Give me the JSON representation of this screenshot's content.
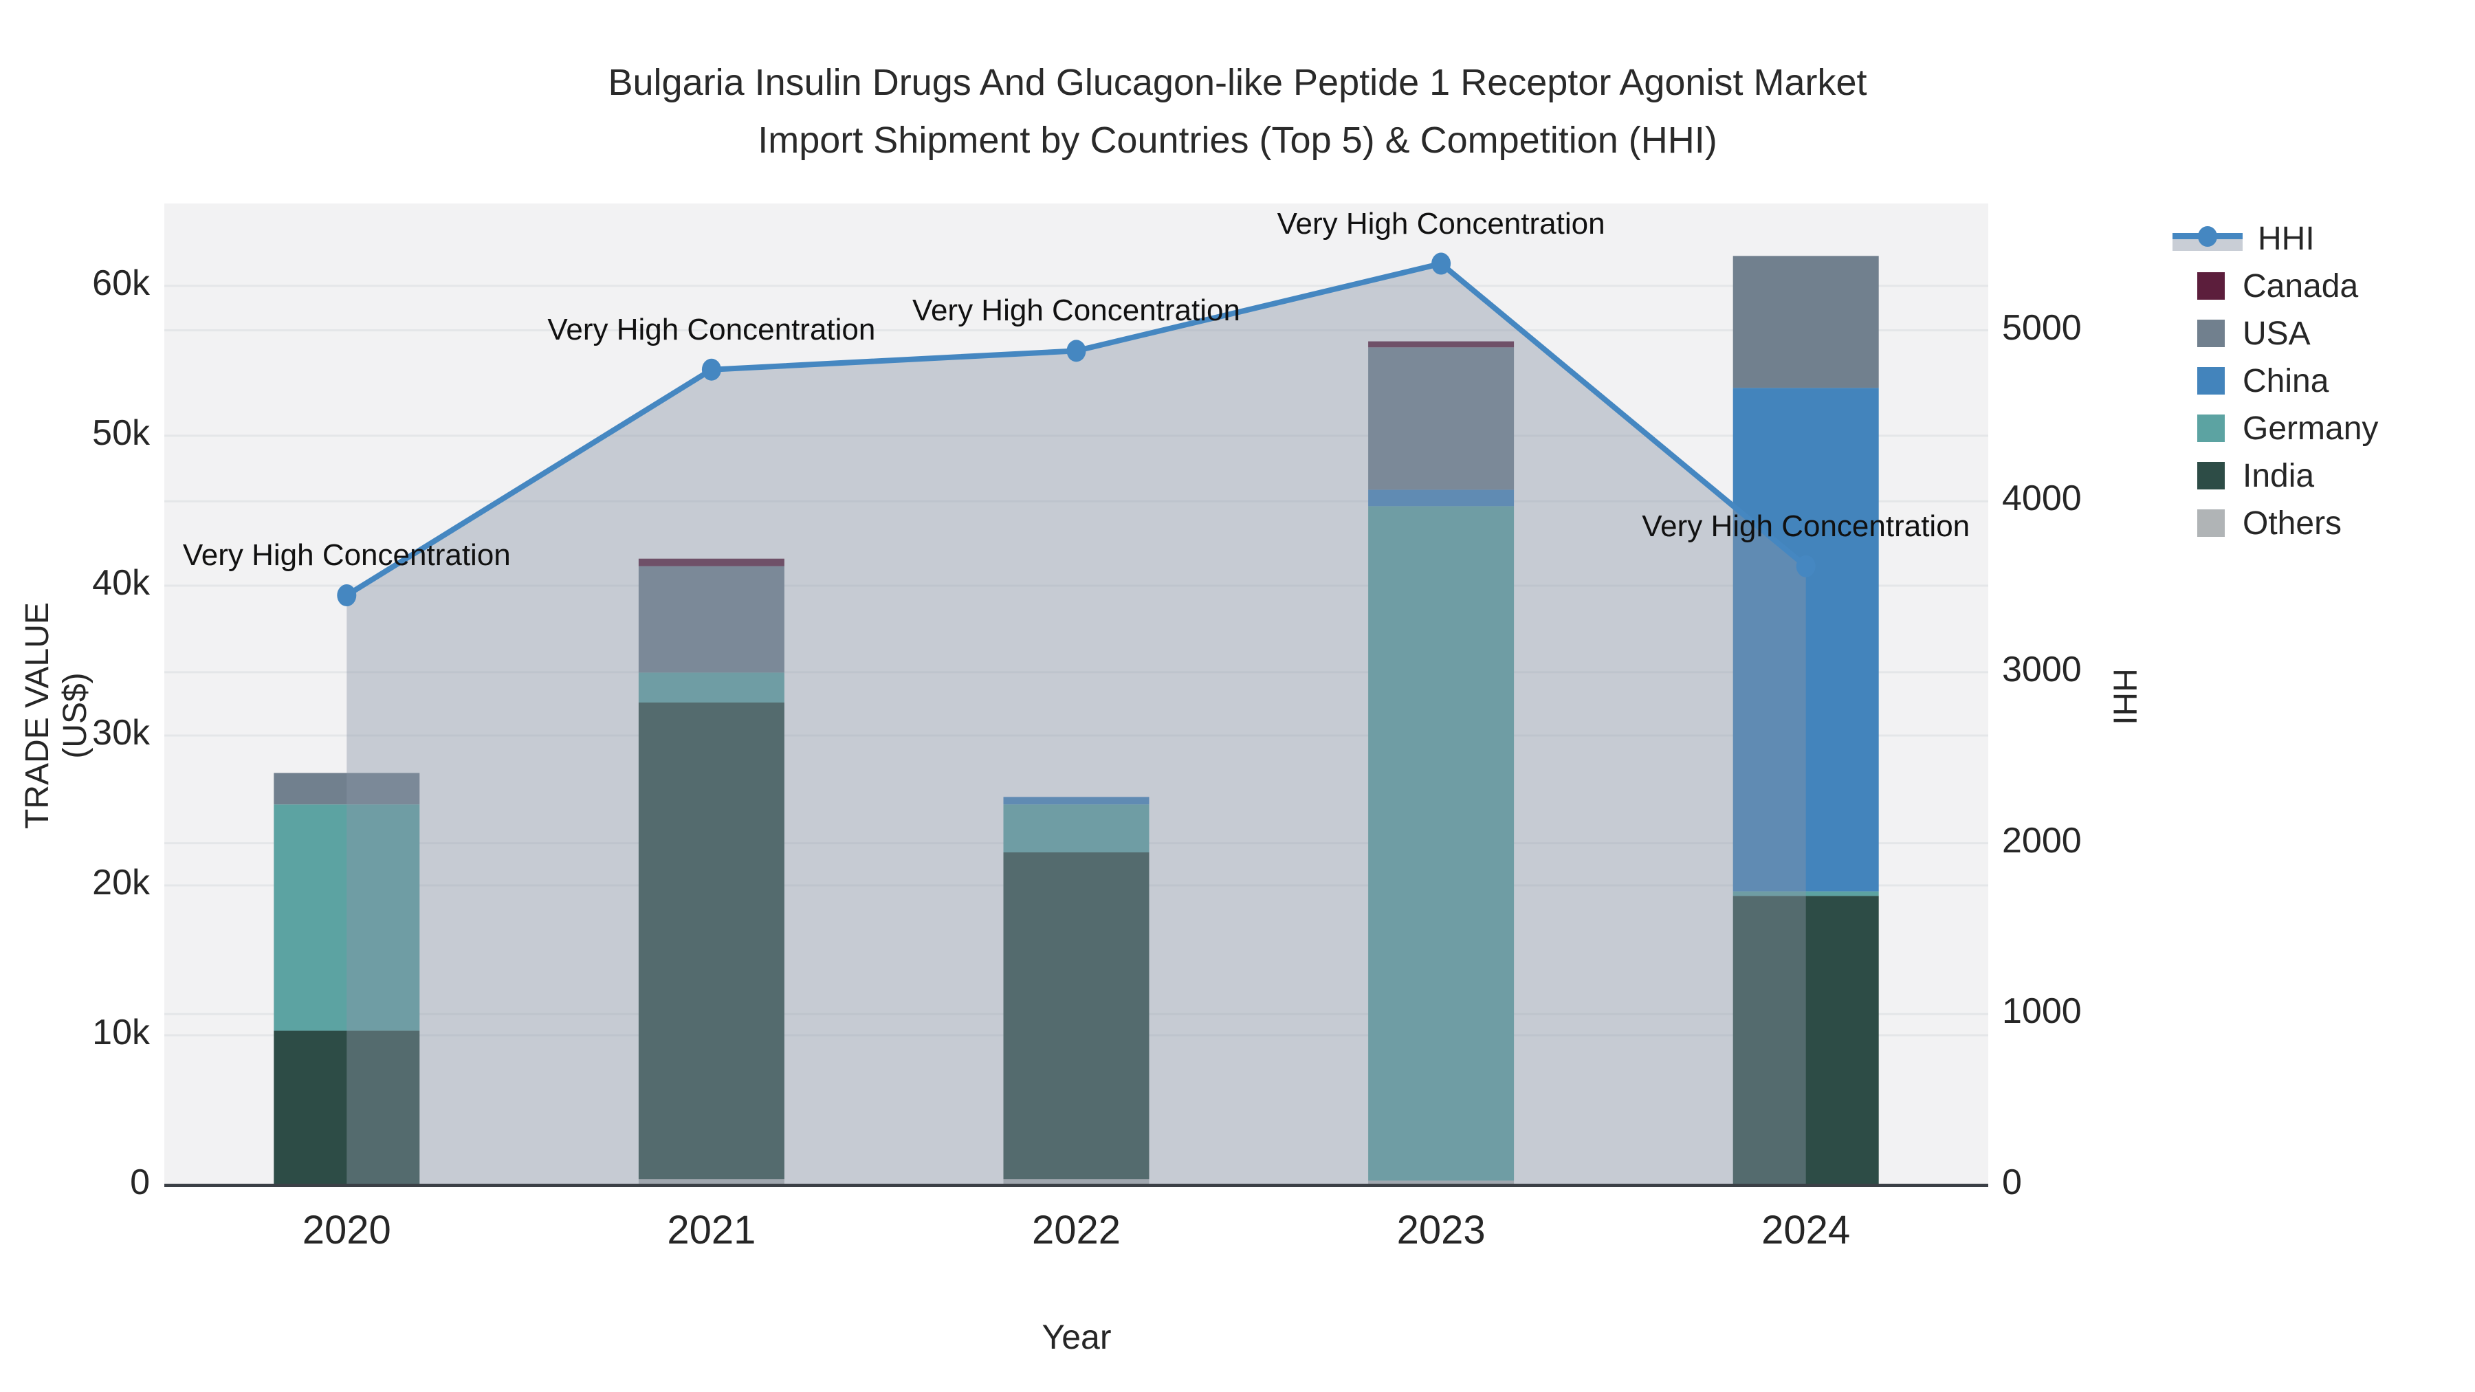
{
  "title": {
    "line1": "Bulgaria Insulin Drugs And Glucagon-like Peptide 1 Receptor Agonist Market",
    "line2": "Import Shipment by Countries (Top 5) & Competition (HHI)"
  },
  "axes": {
    "left_title": "TRADE VALUE (US$)",
    "right_title": "HHI",
    "bottom_title": "Year",
    "left_ticks": [
      {
        "value": 0,
        "label": "0"
      },
      {
        "value": 10000,
        "label": "10k"
      },
      {
        "value": 20000,
        "label": "20k"
      },
      {
        "value": 30000,
        "label": "30k"
      },
      {
        "value": 40000,
        "label": "40k"
      },
      {
        "value": 50000,
        "label": "50k"
      },
      {
        "value": 60000,
        "label": "60k"
      }
    ],
    "right_ticks": [
      {
        "value": 0,
        "label": "0"
      },
      {
        "value": 1000,
        "label": "1000"
      },
      {
        "value": 2000,
        "label": "2000"
      },
      {
        "value": 3000,
        "label": "3000"
      },
      {
        "value": 4000,
        "label": "4000"
      },
      {
        "value": 5000,
        "label": "5000"
      }
    ]
  },
  "chart_data": {
    "type": "bar+line",
    "title": "Bulgaria Insulin Drugs And Glucagon-like Peptide 1 Receptor Agonist Market Import Shipment by Countries (Top 5) & Competition (HHI)",
    "xlabel": "Year",
    "ylabel_left": "TRADE VALUE (US$)",
    "ylabel_right": "HHI",
    "categories": [
      "2020",
      "2021",
      "2022",
      "2023",
      "2024"
    ],
    "left_ylim": [
      0,
      65500
    ],
    "right_ylim": [
      0,
      5742
    ],
    "grid": true,
    "legend_position": "right-outside",
    "stack_order_bottom_to_top": [
      "Others",
      "India",
      "Germany",
      "China",
      "USA",
      "Canada"
    ],
    "series": [
      {
        "name": "Canada",
        "type": "bar",
        "color": "#5c1e3c",
        "values": [
          0,
          500,
          0,
          400,
          0
        ]
      },
      {
        "name": "USA",
        "type": "bar",
        "color": "#71808e",
        "values": [
          2100,
          7100,
          0,
          9500,
          8800
        ]
      },
      {
        "name": "China",
        "type": "bar",
        "color": "#4384bc",
        "values": [
          0,
          0,
          500,
          1100,
          33600
        ]
      },
      {
        "name": "Germany",
        "type": "bar",
        "color": "#5ca3a2",
        "values": [
          15100,
          2000,
          3200,
          45000,
          300
        ]
      },
      {
        "name": "India",
        "type": "bar",
        "color": "#2d4c46",
        "values": [
          10300,
          31800,
          21800,
          0,
          19300
        ]
      },
      {
        "name": "Others",
        "type": "bar",
        "color": "#b0b4b6",
        "values": [
          0,
          400,
          400,
          300,
          0
        ]
      }
    ],
    "hhi_line": {
      "name": "HHI",
      "type": "line+markers+area",
      "axis": "right",
      "color": "#4587c1",
      "area_fill": "rgba(139,149,168,0.42)",
      "values": [
        3450,
        4770,
        4880,
        5390,
        3620
      ]
    },
    "annotations": [
      {
        "x": "2020",
        "text": "Very High Concentration"
      },
      {
        "x": "2021",
        "text": "Very High Concentration"
      },
      {
        "x": "2022",
        "text": "Very High Concentration"
      },
      {
        "x": "2023",
        "text": "Very High Concentration"
      },
      {
        "x": "2024",
        "text": "Very High Concentration"
      }
    ]
  },
  "legend": {
    "items": [
      {
        "label": "HHI",
        "kind": "line",
        "color": "#4587c1"
      },
      {
        "label": "Canada",
        "kind": "square",
        "color": "#5c1e3c"
      },
      {
        "label": "USA",
        "kind": "square",
        "color": "#71808e"
      },
      {
        "label": "China",
        "kind": "square",
        "color": "#4384bc"
      },
      {
        "label": "Germany",
        "kind": "square",
        "color": "#5ca3a2"
      },
      {
        "label": "India",
        "kind": "square",
        "color": "#2d4c46"
      },
      {
        "label": "Others",
        "kind": "square",
        "color": "#b0b4b6"
      }
    ]
  },
  "style": {
    "plot_bg": "#f2f2f3",
    "grid_color": "#e4e6e8",
    "baseline_color": "#3b4046",
    "hhi_area_swatch": "#c9ced6"
  }
}
